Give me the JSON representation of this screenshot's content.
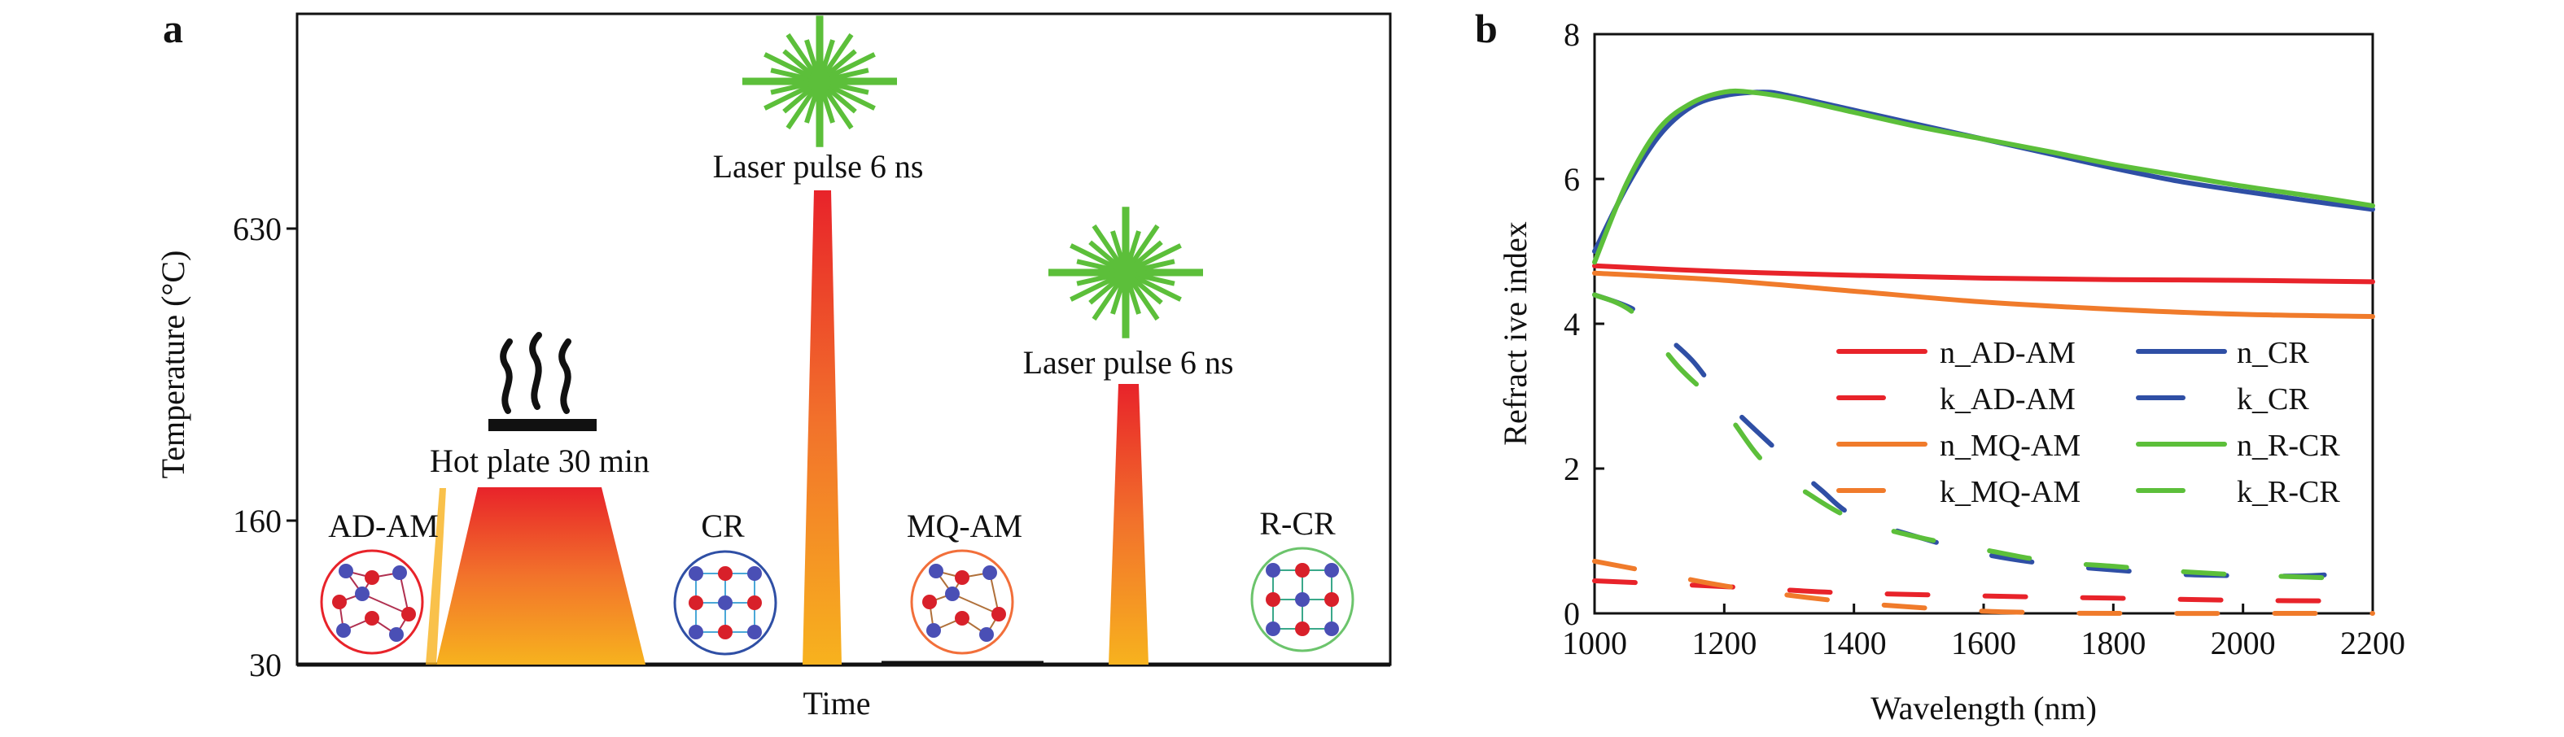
{
  "panel_a": {
    "panel_label": "a",
    "ylabel": "Temperature (°C)",
    "xlabel": "Time",
    "yticks": [
      "630",
      "160",
      "30"
    ],
    "hot_plate_label": "Hot plate 30 min",
    "laser1_label": "Laser pulse 6 ns",
    "laser2_label": "Laser pulse 6 ns",
    "phases": [
      {
        "label": "AD-AM",
        "color": "#e8232a"
      },
      {
        "label": "CR",
        "color": "#2f4fa5"
      },
      {
        "label": "MQ-AM",
        "color": "#f26f3a"
      },
      {
        "label": "R-CR",
        "color": "#6cc46c"
      }
    ],
    "temperatures_c": {
      "hot_plate": 160,
      "laser1_peak": 700,
      "laser2_peak": 400,
      "base": 30
    },
    "icons": [
      "steam-icon",
      "hot-plate-icon",
      "laser-starburst-icon",
      "atomic-structure-icon"
    ]
  },
  "chart_data": {
    "type": "line",
    "panel_label": "b",
    "xlabel": "Wavelength (nm)",
    "ylabel": "Refract ive index",
    "xlim": [
      1000,
      2200
    ],
    "ylim": [
      0,
      8
    ],
    "xticks": [
      "1000",
      "1200",
      "1400",
      "1600",
      "1800",
      "2000",
      "2200"
    ],
    "yticks": [
      "0",
      "2",
      "4",
      "6",
      "8"
    ],
    "legend_position": "center-right",
    "series": [
      {
        "name": "n_AD-AM",
        "color": "#e8232a",
        "dashed": false,
        "x": [
          1000,
          1200,
          1400,
          1600,
          1800,
          2000,
          2200
        ],
        "y": [
          4.8,
          4.72,
          4.67,
          4.63,
          4.61,
          4.6,
          4.58
        ]
      },
      {
        "name": "k_AD-AM",
        "color": "#e8232a",
        "dashed": true,
        "x": [
          1000,
          1200,
          1300,
          1400,
          1600,
          1800,
          2000,
          2200
        ],
        "y": [
          0.45,
          0.37,
          0.32,
          0.28,
          0.24,
          0.21,
          0.18,
          0.17
        ]
      },
      {
        "name": "n_MQ-AM",
        "color": "#f07b2b",
        "dashed": false,
        "x": [
          1000,
          1200,
          1400,
          1600,
          1800,
          2000,
          2200
        ],
        "y": [
          4.7,
          4.6,
          4.45,
          4.3,
          4.2,
          4.13,
          4.1
        ]
      },
      {
        "name": "k_MQ-AM",
        "color": "#f07b2b",
        "dashed": true,
        "x": [
          1000,
          1100,
          1200,
          1300,
          1400,
          1500,
          1600,
          1700,
          1800,
          2200
        ],
        "y": [
          0.72,
          0.55,
          0.38,
          0.25,
          0.15,
          0.08,
          0.03,
          0.01,
          0,
          0
        ]
      },
      {
        "name": "n_CR",
        "color": "#2f4fa5",
        "dashed": false,
        "x": [
          1000,
          1050,
          1100,
          1150,
          1200,
          1260,
          1300,
          1400,
          1500,
          1600,
          1700,
          1800,
          1900,
          2000,
          2100,
          2200
        ],
        "y": [
          5.0,
          5.9,
          6.6,
          7.0,
          7.15,
          7.2,
          7.15,
          6.95,
          6.75,
          6.55,
          6.35,
          6.15,
          5.97,
          5.83,
          5.7,
          5.58
        ]
      },
      {
        "name": "k_CR",
        "color": "#2f4fa5",
        "dashed": true,
        "x": [
          1000,
          1060,
          1100,
          1150,
          1200,
          1300,
          1350,
          1400,
          1500,
          1600,
          1700,
          1800,
          1900,
          2000,
          2100,
          2200
        ],
        "y": [
          4.4,
          4.2,
          3.9,
          3.5,
          2.95,
          2.1,
          1.7,
          1.35,
          1.05,
          0.82,
          0.68,
          0.6,
          0.54,
          0.52,
          0.52,
          0.58
        ]
      },
      {
        "name": "n_R-CR",
        "color": "#5cbf3a",
        "dashed": false,
        "x": [
          1000,
          1050,
          1100,
          1150,
          1200,
          1240,
          1300,
          1400,
          1500,
          1600,
          1700,
          1800,
          1900,
          2000,
          2100,
          2200
        ],
        "y": [
          4.85,
          5.95,
          6.7,
          7.05,
          7.2,
          7.2,
          7.12,
          6.92,
          6.72,
          6.55,
          6.38,
          6.2,
          6.05,
          5.9,
          5.77,
          5.63
        ]
      },
      {
        "name": "k_R-CR",
        "color": "#5cbf3a",
        "dashed": true,
        "x": [
          1000,
          1060,
          1130,
          1200,
          1260,
          1330,
          1400,
          1500,
          1600,
          1700,
          1800,
          1900,
          2000,
          2100,
          2200
        ],
        "y": [
          4.4,
          4.15,
          3.4,
          2.8,
          2.1,
          1.65,
          1.3,
          1.05,
          0.88,
          0.72,
          0.65,
          0.58,
          0.53,
          0.5,
          0.47
        ]
      }
    ]
  }
}
